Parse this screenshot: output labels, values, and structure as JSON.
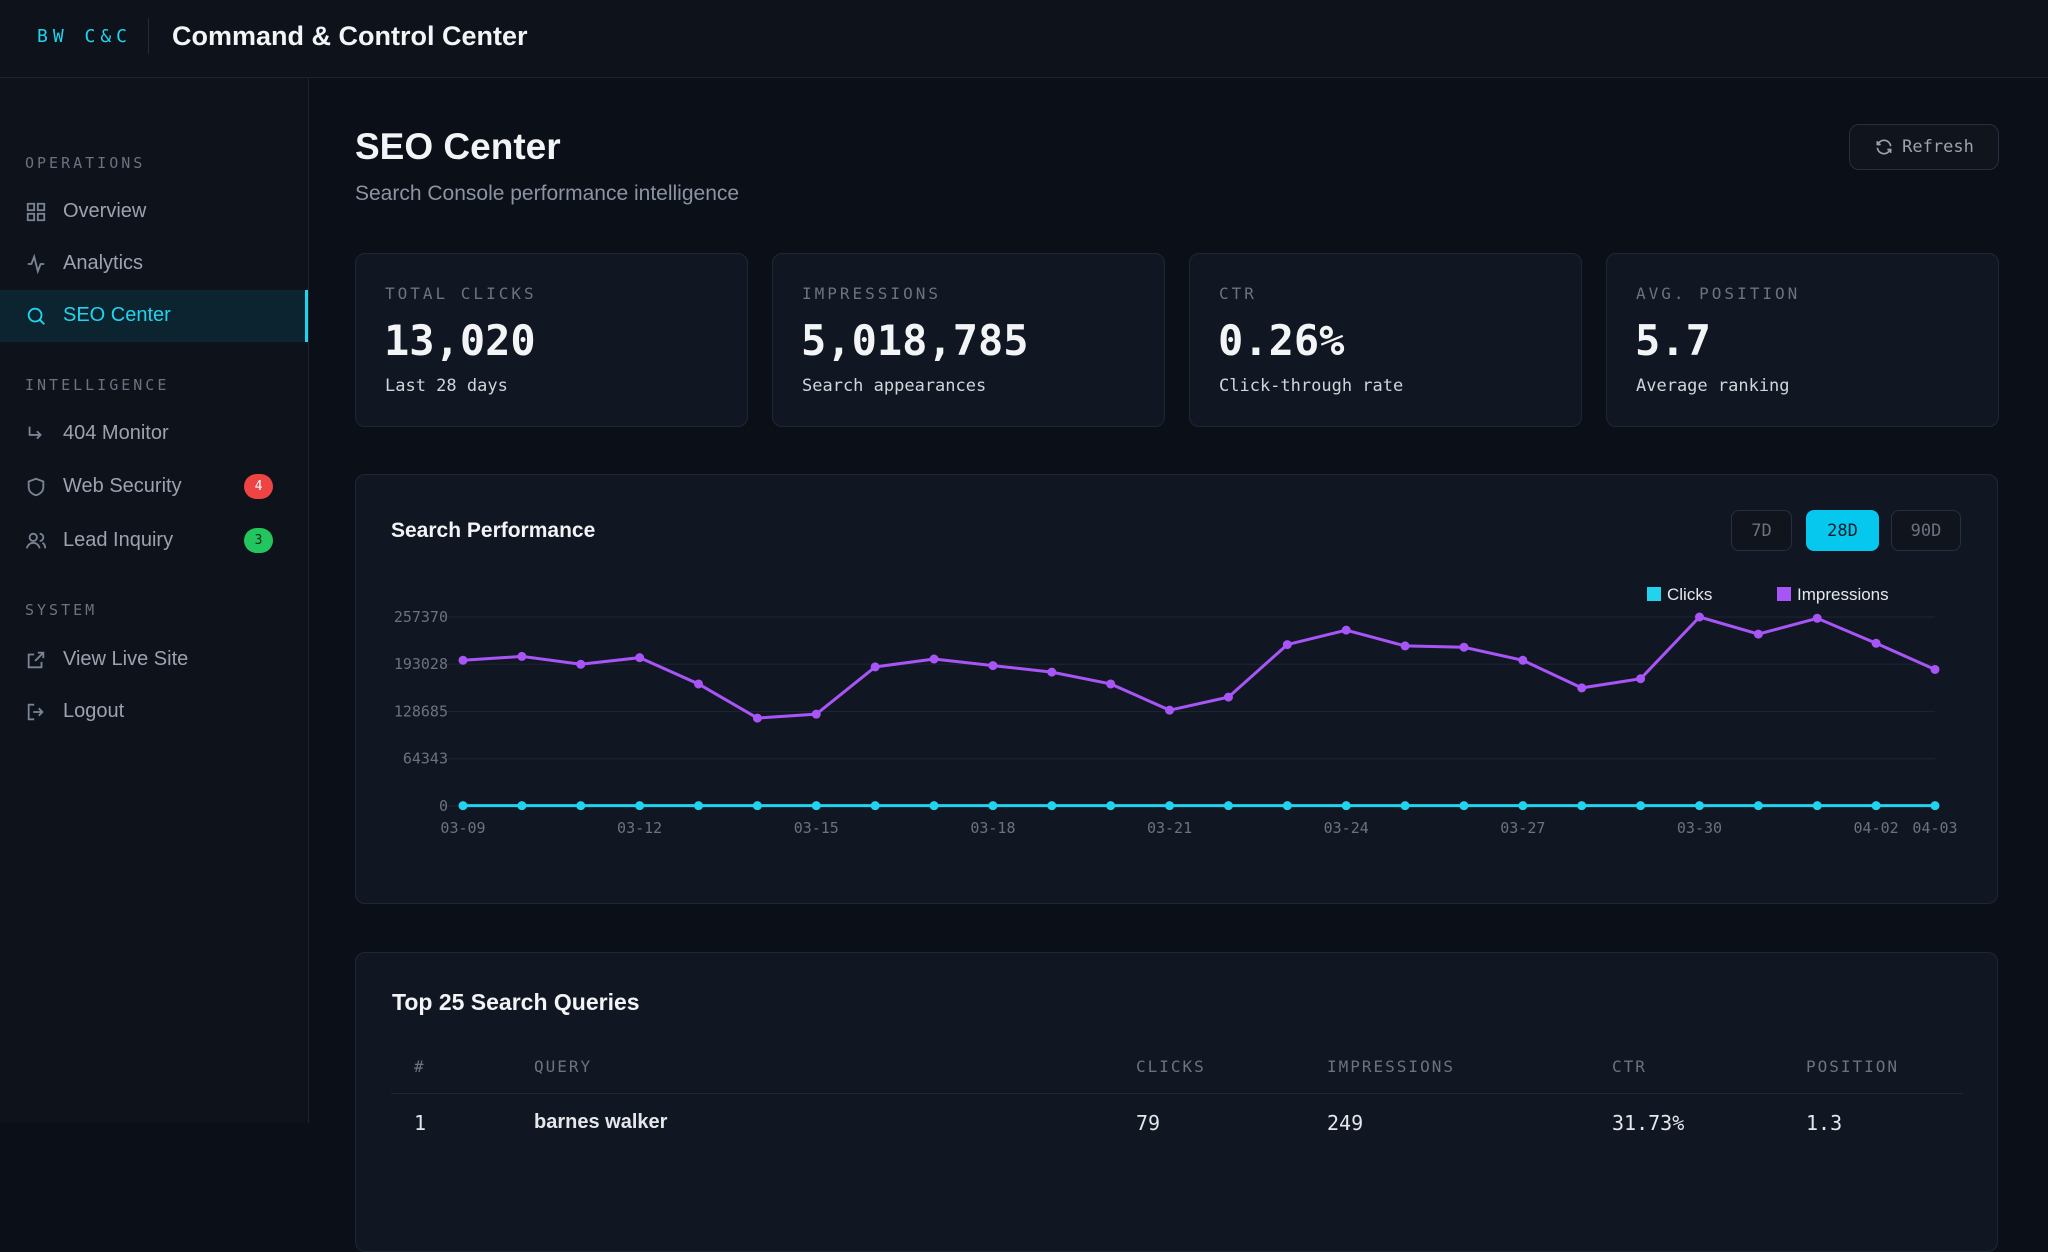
{
  "header": {
    "logo": "BW C&C",
    "title": "Command & Control Center"
  },
  "sidebar": {
    "sections": [
      {
        "title": "OPERATIONS",
        "items": [
          {
            "label": "Overview"
          },
          {
            "label": "Analytics"
          },
          {
            "label": "SEO Center"
          }
        ]
      },
      {
        "title": "INTELLIGENCE",
        "items": [
          {
            "label": "404 Monitor"
          },
          {
            "label": "Web Security",
            "badge": "4"
          },
          {
            "label": "Lead Inquiry",
            "badge": "3"
          }
        ]
      },
      {
        "title": "SYSTEM",
        "items": [
          {
            "label": "View Live Site"
          },
          {
            "label": "Logout"
          }
        ]
      }
    ]
  },
  "page": {
    "title": "SEO Center",
    "subtitle": "Search Console performance intelligence",
    "refresh": "Refresh"
  },
  "stats": [
    {
      "label": "TOTAL CLICKS",
      "value": "13,020",
      "note": "Last 28 days"
    },
    {
      "label": "IMPRESSIONS",
      "value": "5,018,785",
      "note": "Search appearances"
    },
    {
      "label": "CTR",
      "value": "0.26%",
      "note": "Click-through rate"
    },
    {
      "label": "AVG. POSITION",
      "value": "5.7",
      "note": "Average ranking"
    }
  ],
  "chart_data": {
    "type": "line",
    "title": "Search Performance",
    "ranges": [
      "7D",
      "28D",
      "90D"
    ],
    "categories": [
      "03-09",
      null,
      null,
      "03-12",
      null,
      null,
      "03-15",
      null,
      null,
      "03-18",
      null,
      null,
      "03-21",
      null,
      null,
      "03-24",
      null,
      null,
      "03-27",
      null,
      null,
      "03-30",
      null,
      null,
      "04-02",
      "04-03"
    ],
    "series": [
      {
        "name": "Clicks",
        "color": "#22d3ee",
        "values": [
          500,
          500,
          500,
          500,
          500,
          500,
          500,
          500,
          500,
          500,
          500,
          500,
          500,
          500,
          500,
          500,
          500,
          500,
          500,
          500,
          500,
          500,
          500,
          500,
          500,
          500
        ]
      },
      {
        "name": "Impressions",
        "color": "#a855f7",
        "values": [
          198400,
          203700,
          193000,
          202000,
          166200,
          119700,
          125100,
          189400,
          200100,
          191200,
          182300,
          166200,
          130500,
          148300,
          219800,
          239500,
          218000,
          216200,
          198400,
          160800,
          173300,
          257370,
          234100,
          255600,
          221600,
          185900
        ]
      }
    ],
    "ylim": [
      0,
      257370
    ],
    "yticks": [
      0,
      64343,
      128685,
      193028,
      257370
    ],
    "grid": true
  },
  "table": {
    "title": "Top 25 Search Queries",
    "columns": [
      "#",
      "QUERY",
      "CLICKS",
      "IMPRESSIONS",
      "CTR",
      "POSITION"
    ],
    "rows": [
      [
        "1",
        "barnes walker",
        "79",
        "249",
        "31.73%",
        "1.3"
      ]
    ]
  }
}
